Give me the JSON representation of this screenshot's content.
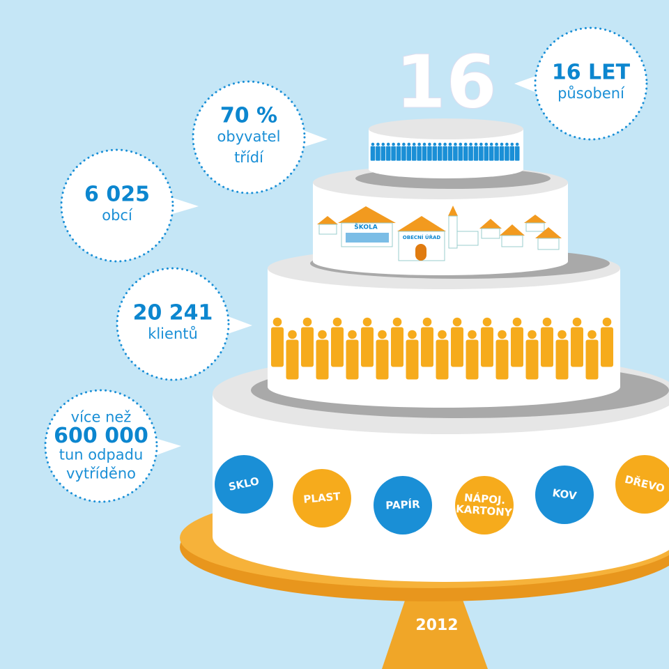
{
  "candle": "16",
  "bubbles": [
    {
      "lines": [
        "16 LET",
        "působení"
      ]
    },
    {
      "lines": [
        "70 %",
        "obyvatel",
        "třídí"
      ]
    },
    {
      "lines": [
        "6 025",
        "obcí"
      ]
    },
    {
      "lines": [
        "20 241",
        "klientů"
      ]
    },
    {
      "lines": [
        "více než",
        "600 000",
        "tun odpadu",
        "vytříděno"
      ]
    }
  ],
  "buildings": [
    "ŠKOLA",
    "OBECNÍ ÚŘAD"
  ],
  "materials": [
    {
      "lines": [
        "SKLO"
      ]
    },
    {
      "lines": [
        "PLAST"
      ]
    },
    {
      "lines": [
        "PAPÍR"
      ]
    },
    {
      "lines": [
        "NÁPOJ.",
        "KARTONY"
      ]
    },
    {
      "lines": [
        "KOV"
      ]
    },
    {
      "lines": [
        "DŘEVO"
      ]
    }
  ],
  "year": "2012"
}
